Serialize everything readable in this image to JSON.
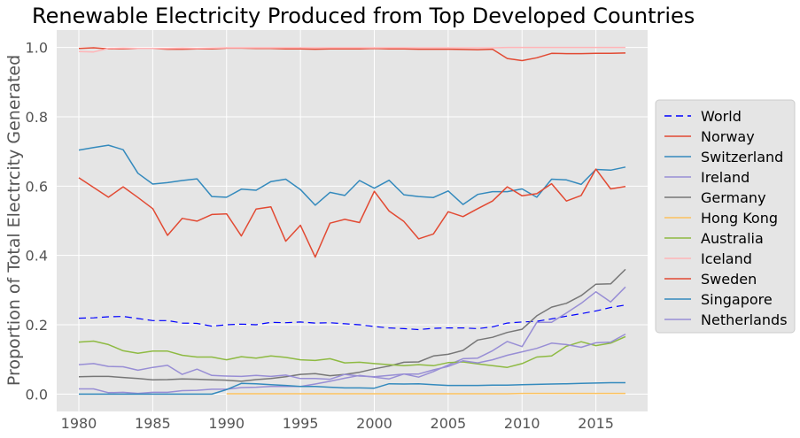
{
  "chart_data": {
    "type": "line",
    "title": "Renewable Electricity Produced from Top Developed Countries",
    "xlabel": "",
    "ylabel": "Proportion of Total Electrcity Generated",
    "xlim": [
      1978.5,
      2018.5
    ],
    "ylim": [
      -0.05,
      1.05
    ],
    "x_ticks": [
      "1980",
      "1985",
      "1990",
      "1995",
      "2000",
      "2005",
      "2010",
      "2015"
    ],
    "y_ticks": [
      "0.0",
      "0.2",
      "0.4",
      "0.6",
      "0.8",
      "1.0"
    ],
    "grid": true,
    "legend_position": "right",
    "background": "#e5e5e5",
    "x": [
      1980,
      1981,
      1982,
      1983,
      1984,
      1985,
      1986,
      1987,
      1988,
      1989,
      1990,
      1991,
      1992,
      1993,
      1994,
      1995,
      1996,
      1997,
      1998,
      1999,
      2000,
      2001,
      2002,
      2003,
      2004,
      2005,
      2006,
      2007,
      2008,
      2009,
      2010,
      2011,
      2012,
      2013,
      2014,
      2015,
      2016,
      2017
    ],
    "series": [
      {
        "name": "World",
        "color": "#0000ff",
        "dash": "8,5",
        "values": [
          0.219,
          0.22,
          0.223,
          0.224,
          0.218,
          0.212,
          0.212,
          0.205,
          0.204,
          0.196,
          0.2,
          0.202,
          0.2,
          0.207,
          0.206,
          0.208,
          0.205,
          0.206,
          0.203,
          0.2,
          0.195,
          0.191,
          0.189,
          0.186,
          0.19,
          0.191,
          0.191,
          0.189,
          0.194,
          0.205,
          0.208,
          0.21,
          0.217,
          0.225,
          0.232,
          0.24,
          0.25,
          0.257
        ]
      },
      {
        "name": "Norway",
        "color": "#e24a33",
        "values": [
          0.997,
          0.999,
          0.996,
          0.996,
          0.997,
          0.997,
          0.995,
          0.995,
          0.996,
          0.996,
          0.998,
          0.998,
          0.997,
          0.997,
          0.996,
          0.996,
          0.995,
          0.996,
          0.996,
          0.996,
          0.997,
          0.996,
          0.996,
          0.995,
          0.995,
          0.995,
          0.994,
          0.993,
          0.995,
          0.968,
          0.962,
          0.97,
          0.983,
          0.982,
          0.982,
          0.983,
          0.983,
          0.984
        ]
      },
      {
        "name": "Switzerland",
        "color": "#348abd",
        "values": [
          0.704,
          0.711,
          0.718,
          0.705,
          0.637,
          0.606,
          0.61,
          0.616,
          0.621,
          0.57,
          0.568,
          0.591,
          0.588,
          0.613,
          0.62,
          0.59,
          0.545,
          0.582,
          0.573,
          0.616,
          0.594,
          0.617,
          0.575,
          0.57,
          0.567,
          0.586,
          0.547,
          0.576,
          0.584,
          0.584,
          0.592,
          0.568,
          0.62,
          0.618,
          0.605,
          0.648,
          0.646,
          0.655
        ]
      },
      {
        "name": "Ireland",
        "color": "#988ed5",
        "values": [
          0.015,
          0.015,
          0.004,
          0.005,
          0.002,
          0.005,
          0.005,
          0.01,
          0.011,
          0.014,
          0.014,
          0.019,
          0.02,
          0.022,
          0.022,
          0.022,
          0.029,
          0.037,
          0.046,
          0.054,
          0.049,
          0.044,
          0.058,
          0.049,
          0.065,
          0.084,
          0.102,
          0.104,
          0.125,
          0.152,
          0.137,
          0.207,
          0.207,
          0.234,
          0.262,
          0.295,
          0.266,
          0.309
        ]
      },
      {
        "name": "Germany",
        "color": "#777777",
        "values": [
          0.05,
          0.051,
          0.051,
          0.048,
          0.045,
          0.041,
          0.042,
          0.044,
          0.043,
          0.041,
          0.04,
          0.037,
          0.042,
          0.045,
          0.05,
          0.057,
          0.059,
          0.053,
          0.057,
          0.063,
          0.073,
          0.081,
          0.092,
          0.093,
          0.11,
          0.115,
          0.126,
          0.156,
          0.164,
          0.178,
          0.187,
          0.226,
          0.251,
          0.262,
          0.284,
          0.317,
          0.318,
          0.36
        ]
      },
      {
        "name": "Hong Kong",
        "color": "#fbc15e",
        "values": [
          null,
          null,
          null,
          null,
          null,
          null,
          null,
          null,
          null,
          null,
          0.001,
          0.001,
          0.001,
          0.001,
          0.001,
          0.001,
          0.001,
          0.001,
          0.001,
          0.001,
          0.001,
          0.001,
          0.001,
          0.001,
          0.001,
          0.001,
          0.001,
          0.001,
          0.001,
          0.001,
          0.002,
          0.002,
          0.002,
          0.002,
          0.002,
          0.002,
          0.002,
          0.002
        ]
      },
      {
        "name": "Australia",
        "color": "#8eba42",
        "values": [
          0.15,
          0.153,
          0.143,
          0.125,
          0.118,
          0.124,
          0.124,
          0.112,
          0.107,
          0.107,
          0.099,
          0.108,
          0.104,
          0.11,
          0.106,
          0.099,
          0.097,
          0.102,
          0.09,
          0.092,
          0.088,
          0.085,
          0.082,
          0.085,
          0.082,
          0.091,
          0.093,
          0.087,
          0.082,
          0.077,
          0.088,
          0.107,
          0.11,
          0.138,
          0.151,
          0.14,
          0.147,
          0.166
        ]
      },
      {
        "name": "Iceland",
        "color": "#ffb5b8",
        "values": [
          0.988,
          0.987,
          0.997,
          0.998,
          0.997,
          0.997,
          0.997,
          0.998,
          0.997,
          0.998,
          0.999,
          0.999,
          0.999,
          0.999,
          0.999,
          0.999,
          0.999,
          0.999,
          0.999,
          0.999,
          0.999,
          0.999,
          0.999,
          0.999,
          0.999,
          0.999,
          0.999,
          0.999,
          0.999,
          1.0,
          1.0,
          1.0,
          1.0,
          1.0,
          1.0,
          1.0,
          1.0,
          1.0
        ]
      },
      {
        "name": "Sweden",
        "color": "#e24a33",
        "values": [
          0.624,
          0.596,
          0.568,
          0.598,
          0.567,
          0.535,
          0.458,
          0.507,
          0.499,
          0.518,
          0.52,
          0.456,
          0.534,
          0.54,
          0.441,
          0.487,
          0.395,
          0.493,
          0.504,
          0.495,
          0.585,
          0.528,
          0.498,
          0.448,
          0.462,
          0.526,
          0.512,
          0.535,
          0.557,
          0.598,
          0.572,
          0.578,
          0.607,
          0.557,
          0.573,
          0.649,
          0.592,
          0.599
        ]
      },
      {
        "name": "Singapore",
        "color": "#348abd",
        "values": [
          0.0,
          0.0,
          0.0,
          0.0,
          0.0,
          0.0,
          0.0,
          0.0,
          0.0,
          0.0,
          0.013,
          0.031,
          0.03,
          0.027,
          0.025,
          0.022,
          0.022,
          0.02,
          0.018,
          0.018,
          0.017,
          0.03,
          0.029,
          0.03,
          0.027,
          0.025,
          0.025,
          0.025,
          0.026,
          0.026,
          0.027,
          0.028,
          0.029,
          0.03,
          0.031,
          0.032,
          0.033,
          0.033
        ]
      },
      {
        "name": "Netherlands",
        "color": "#988ed5",
        "values": [
          0.085,
          0.088,
          0.08,
          0.079,
          0.069,
          0.077,
          0.083,
          0.057,
          0.072,
          0.054,
          0.052,
          0.051,
          0.054,
          0.051,
          0.055,
          0.045,
          0.045,
          0.043,
          0.057,
          0.052,
          0.05,
          0.054,
          0.058,
          0.058,
          0.07,
          0.08,
          0.096,
          0.09,
          0.099,
          0.112,
          0.122,
          0.132,
          0.147,
          0.143,
          0.135,
          0.148,
          0.15,
          0.173
        ]
      }
    ]
  }
}
